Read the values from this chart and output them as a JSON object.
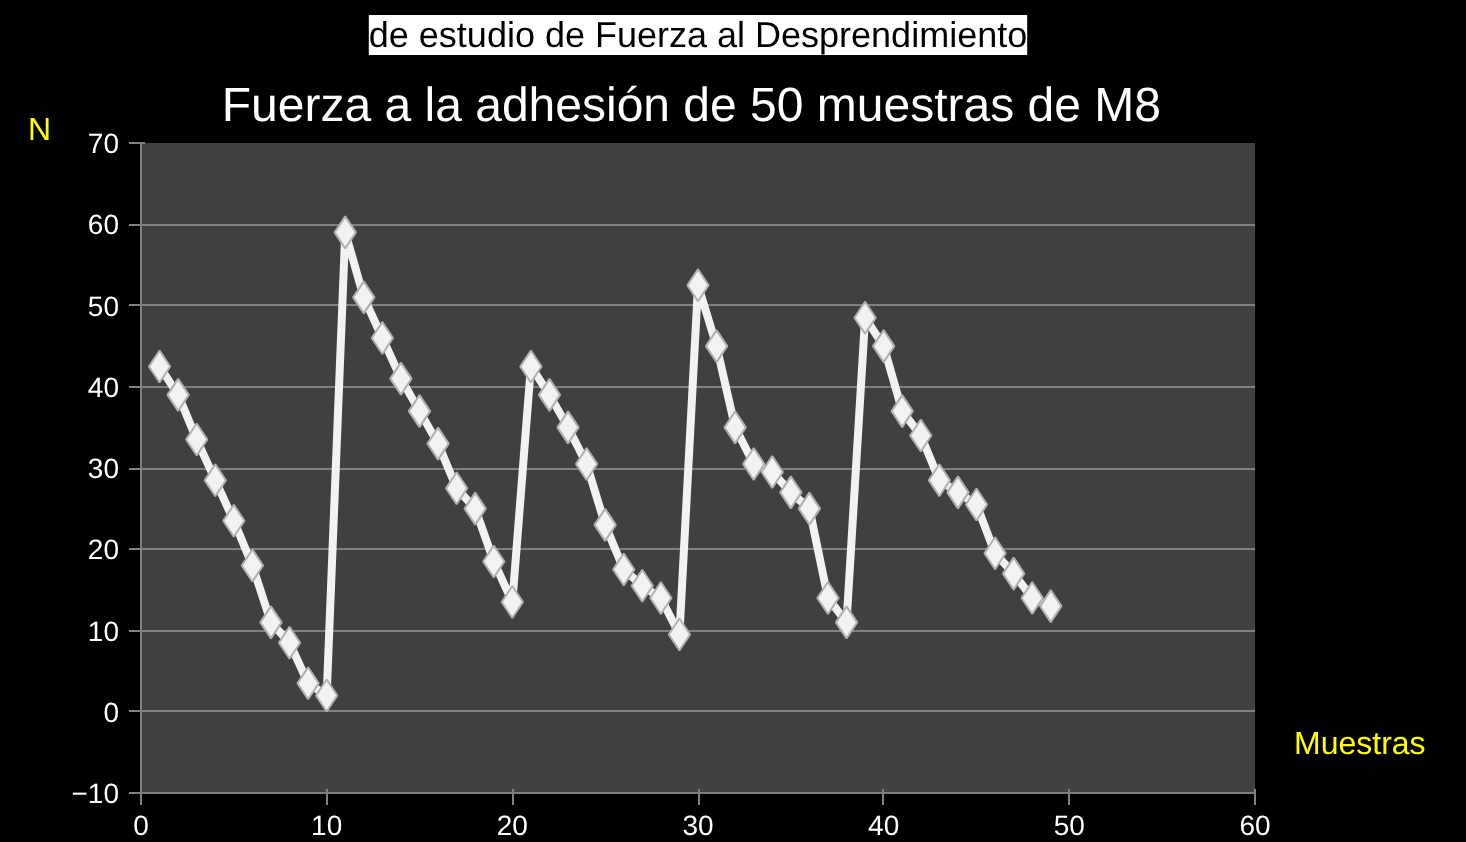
{
  "chart_data": {
    "type": "line",
    "title": "Fuerza a la adhesión  de 50 muestras de M8",
    "subtitle": "de estudio de Fuerza al Desprendimiento",
    "xlabel": "Muestras",
    "ylabel": "N",
    "x": [
      1,
      2,
      3,
      4,
      5,
      6,
      7,
      8,
      9,
      10,
      11,
      12,
      13,
      14,
      15,
      16,
      17,
      18,
      19,
      20,
      21,
      22,
      23,
      24,
      25,
      26,
      27,
      28,
      29,
      30,
      31,
      32,
      33,
      34,
      35,
      36,
      37,
      38,
      39,
      40,
      41,
      42,
      43,
      44,
      45,
      46,
      47,
      48,
      49
    ],
    "series": [
      {
        "color": "#f2f2f2",
        "values": [
          42.5,
          39,
          33.5,
          28.5,
          23.5,
          18,
          11,
          8.5,
          3.5,
          2,
          59,
          51,
          46,
          41,
          37,
          33,
          27.5,
          25,
          18.5,
          13.5,
          42.5,
          39,
          35,
          30.5,
          23,
          17.5,
          15.5,
          14,
          9.5,
          52.5,
          45,
          35,
          30.5,
          29.5,
          27,
          25,
          14,
          11,
          48.5,
          45,
          37,
          34,
          28.5,
          27,
          25.5,
          19.5,
          17,
          14,
          13
        ]
      }
    ],
    "xlim": [
      0,
      60
    ],
    "xticks": [
      0,
      10,
      20,
      30,
      40,
      50,
      60
    ],
    "ylim": [
      -10,
      70
    ],
    "yticks": [
      -10,
      0,
      10,
      20,
      30,
      40,
      50,
      60,
      70
    ],
    "grid": "y",
    "marker": "diamond",
    "line_style": "solid"
  }
}
